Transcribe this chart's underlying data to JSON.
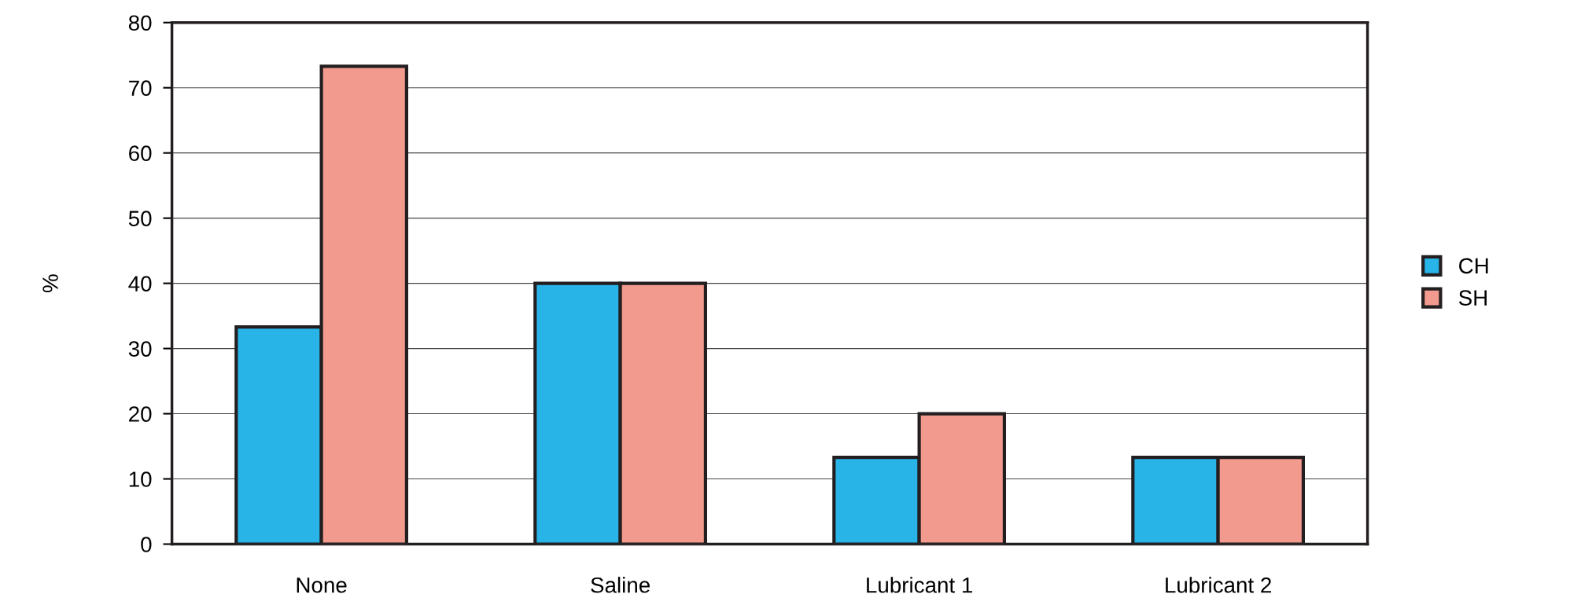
{
  "chart_data": {
    "type": "bar",
    "ylabel": "%",
    "categories": [
      "None",
      "Saline",
      "Lubricant 1",
      "Lubricant 2"
    ],
    "series": [
      {
        "name": "CH",
        "color": "#29b4e8",
        "values": [
          33.3,
          40,
          13.3,
          13.3
        ]
      },
      {
        "name": "SH",
        "color": "#f39a8e",
        "values": [
          73.3,
          40,
          20,
          13.3
        ]
      }
    ],
    "ylim": [
      0,
      80
    ],
    "yticks": [
      0,
      10,
      20,
      30,
      40,
      50,
      60,
      70,
      80
    ],
    "grid": "y",
    "legend": "right"
  }
}
